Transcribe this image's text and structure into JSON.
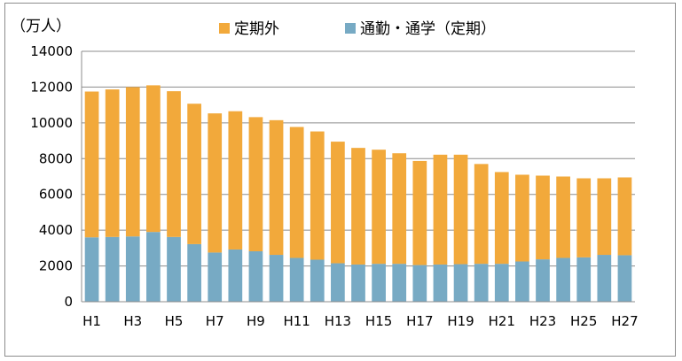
{
  "chart_data": {
    "type": "bar",
    "stacked": true,
    "y_unit_label": "（万人）",
    "ylim": [
      0,
      14000
    ],
    "yticks": [
      0,
      2000,
      4000,
      6000,
      8000,
      10000,
      12000,
      14000
    ],
    "grid": true,
    "legend_position": "top",
    "categories": [
      "H1",
      "H2",
      "H3",
      "H4",
      "H5",
      "H6",
      "H7",
      "H8",
      "H9",
      "H10",
      "H11",
      "H12",
      "H13",
      "H14",
      "H15",
      "H16",
      "H17",
      "H18",
      "H19",
      "H20",
      "H21",
      "H22",
      "H23",
      "H24",
      "H25",
      "H26",
      "H27"
    ],
    "x_tick_labels": [
      "H1",
      "H3",
      "H5",
      "H7",
      "H9",
      "H11",
      "H13",
      "H15",
      "H17",
      "H19",
      "H21",
      "H23",
      "H25",
      "H27"
    ],
    "series": [
      {
        "name": "通勤・通学（定期）",
        "color": "#77aac4",
        "values": [
          3600,
          3620,
          3650,
          3900,
          3620,
          3220,
          2750,
          2920,
          2820,
          2620,
          2450,
          2350,
          2150,
          2080,
          2120,
          2120,
          2050,
          2080,
          2100,
          2120,
          2120,
          2250,
          2370,
          2450,
          2480,
          2620,
          2600
        ]
      },
      {
        "name": "定期外",
        "color": "#f2a93b",
        "values": [
          8150,
          8250,
          8350,
          8200,
          8150,
          7850,
          7780,
          7730,
          7500,
          7530,
          7320,
          7170,
          6800,
          6520,
          6380,
          6180,
          5820,
          6140,
          6120,
          5580,
          5130,
          4850,
          4680,
          4550,
          4420,
          4280,
          4350
        ]
      }
    ]
  }
}
